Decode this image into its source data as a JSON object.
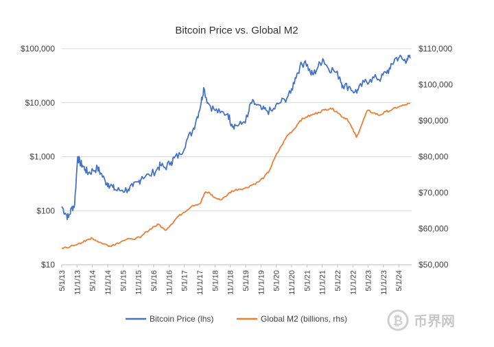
{
  "chart_data": {
    "type": "line",
    "title": "Bitcoin Price vs. Global M2",
    "left_axis": {
      "scale": "log",
      "ylim": [
        10,
        100000
      ],
      "ticks": [
        10,
        100,
        1000,
        10000,
        100000
      ],
      "tick_labels": [
        "$10",
        "$100",
        "$1,000",
        "$10,000",
        "$100,000"
      ]
    },
    "right_axis": {
      "scale": "linear",
      "ylim": [
        50000,
        110000
      ],
      "ticks": [
        50000,
        60000,
        70000,
        80000,
        90000,
        100000,
        110000
      ],
      "tick_labels": [
        "$50,000",
        "$60,000",
        "$70,000",
        "$80,000",
        "$90,000",
        "$100,000",
        "$110,000"
      ]
    },
    "x_range": [
      2013.33,
      2024.75
    ],
    "x_ticks": [
      2013.33,
      2013.83,
      2014.33,
      2014.83,
      2015.33,
      2015.83,
      2016.33,
      2016.83,
      2017.33,
      2017.83,
      2018.33,
      2018.83,
      2019.33,
      2019.83,
      2020.33,
      2020.83,
      2021.33,
      2021.83,
      2022.33,
      2022.83,
      2023.33,
      2023.83,
      2024.33
    ],
    "x_tick_labels": [
      "5/1/13",
      "11/1/13",
      "5/1/14",
      "11/1/14",
      "5/1/15",
      "11/1/15",
      "5/1/16",
      "11/1/16",
      "5/1/17",
      "11/1/17",
      "5/1/18",
      "11/1/18",
      "5/1/19",
      "11/1/19",
      "5/1/20",
      "11/1/20",
      "5/1/21",
      "11/1/21",
      "5/1/22",
      "11/1/22",
      "5/1/23",
      "11/1/23",
      "5/1/24"
    ],
    "series": [
      {
        "name": "Bitcoin Price (lhs)",
        "axis": "left",
        "color": "#4472C4",
        "x": [
          2013.33,
          2013.45,
          2013.55,
          2013.65,
          2013.75,
          2013.85,
          2013.92,
          2014.0,
          2014.1,
          2014.2,
          2014.35,
          2014.5,
          2014.6,
          2014.75,
          2014.85,
          2015.0,
          2015.1,
          2015.3,
          2015.5,
          2015.65,
          2015.83,
          2015.95,
          2016.2,
          2016.45,
          2016.55,
          2016.7,
          2016.9,
          2017.0,
          2017.2,
          2017.4,
          2017.6,
          2017.75,
          2017.88,
          2017.96,
          2018.1,
          2018.3,
          2018.5,
          2018.75,
          2018.88,
          2019.0,
          2019.2,
          2019.4,
          2019.5,
          2019.65,
          2019.85,
          2020.0,
          2020.2,
          2020.4,
          2020.6,
          2020.8,
          2020.95,
          2021.1,
          2021.28,
          2021.45,
          2021.55,
          2021.7,
          2021.85,
          2022.0,
          2022.2,
          2022.4,
          2022.5,
          2022.7,
          2022.9,
          2023.0,
          2023.2,
          2023.4,
          2023.6,
          2023.75,
          2023.9,
          2024.05,
          2024.2,
          2024.35,
          2024.5,
          2024.6,
          2024.7
        ],
        "values": [
          120,
          90,
          75,
          110,
          130,
          1000,
          800,
          700,
          580,
          500,
          560,
          620,
          500,
          350,
          320,
          270,
          240,
          240,
          250,
          280,
          340,
          430,
          450,
          600,
          700,
          630,
          800,
          950,
          1100,
          2000,
          3000,
          5500,
          10000,
          19000,
          10000,
          7500,
          6500,
          6300,
          4000,
          3800,
          4000,
          5500,
          10000,
          9500,
          7500,
          7200,
          7000,
          9500,
          11500,
          15000,
          29000,
          46000,
          60000,
          35000,
          34000,
          47000,
          65000,
          46000,
          40000,
          30000,
          21000,
          20000,
          16000,
          17000,
          24000,
          27000,
          29000,
          28000,
          37000,
          42000,
          65000,
          70000,
          60000,
          65000,
          66000
        ]
      },
      {
        "name": "Global M2 (billions, rhs)",
        "axis": "right",
        "color": "#ED7D31",
        "x": [
          2013.33,
          2013.6,
          2013.9,
          2014.1,
          2014.3,
          2014.5,
          2014.7,
          2014.9,
          2015.1,
          2015.3,
          2015.6,
          2015.9,
          2016.1,
          2016.3,
          2016.5,
          2016.7,
          2016.9,
          2017.1,
          2017.3,
          2017.6,
          2017.85,
          2018.0,
          2018.15,
          2018.3,
          2018.5,
          2018.75,
          2018.9,
          2019.1,
          2019.3,
          2019.5,
          2019.75,
          2019.95,
          2020.1,
          2020.3,
          2020.5,
          2020.7,
          2020.9,
          2021.1,
          2021.3,
          2021.5,
          2021.7,
          2021.9,
          2022.1,
          2022.3,
          2022.5,
          2022.65,
          2022.8,
          2022.95,
          2023.1,
          2023.3,
          2023.5,
          2023.7,
          2023.9,
          2024.1,
          2024.3,
          2024.5,
          2024.7
        ],
        "values": [
          54500,
          55000,
          56000,
          56500,
          57500,
          56500,
          55800,
          55200,
          55800,
          56600,
          57200,
          57500,
          59200,
          60400,
          61200,
          59600,
          61200,
          63200,
          64500,
          66500,
          67000,
          70000,
          70000,
          68700,
          68000,
          69500,
          70500,
          71000,
          71200,
          72000,
          73000,
          74500,
          76000,
          80000,
          83000,
          86000,
          87500,
          90000,
          91000,
          91600,
          92300,
          93000,
          93500,
          92600,
          91000,
          90500,
          88000,
          85400,
          88500,
          92800,
          92200,
          91500,
          92500,
          93000,
          93800,
          94300,
          94800
        ]
      }
    ],
    "legend": {
      "placement": "bottom",
      "entries": [
        "Bitcoin Price (lhs)",
        "Global M2 (billions, rhs)"
      ]
    },
    "watermark": {
      "text": "币界网",
      "icon": "bitcoin-logo-icon"
    }
  }
}
